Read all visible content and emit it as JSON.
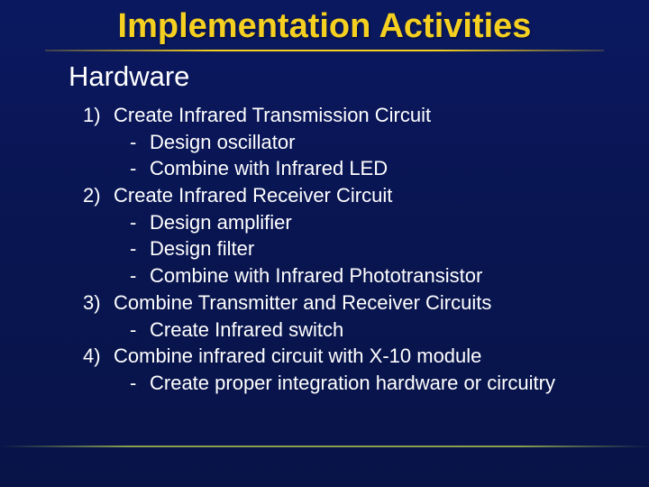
{
  "title": "Implementation Activities",
  "subtitle": "Hardware",
  "colors": {
    "background": "#0a1654",
    "title_color": "#f5d020",
    "text_color": "#ffffff",
    "accent_line": "#8aa050"
  },
  "typography": {
    "title_fontsize": 38,
    "subtitle_fontsize": 31,
    "body_fontsize": 22,
    "title_weight": "bold"
  },
  "items": [
    {
      "num": "1)",
      "label": "Create Infrared Transmission Circuit",
      "subs": [
        "Design oscillator",
        "Combine with Infrared LED"
      ]
    },
    {
      "num": "2)",
      "label": "Create Infrared Receiver Circuit",
      "subs": [
        "Design amplifier",
        "Design filter",
        "Combine with Infrared Phototransistor"
      ]
    },
    {
      "num": "3)",
      "label": "Combine Transmitter and Receiver Circuits",
      "subs": [
        "Create Infrared switch"
      ]
    },
    {
      "num": "4)",
      "label": "Combine infrared circuit with X-10 module",
      "subs": [
        "Create proper integration hardware or circuitry"
      ]
    }
  ]
}
